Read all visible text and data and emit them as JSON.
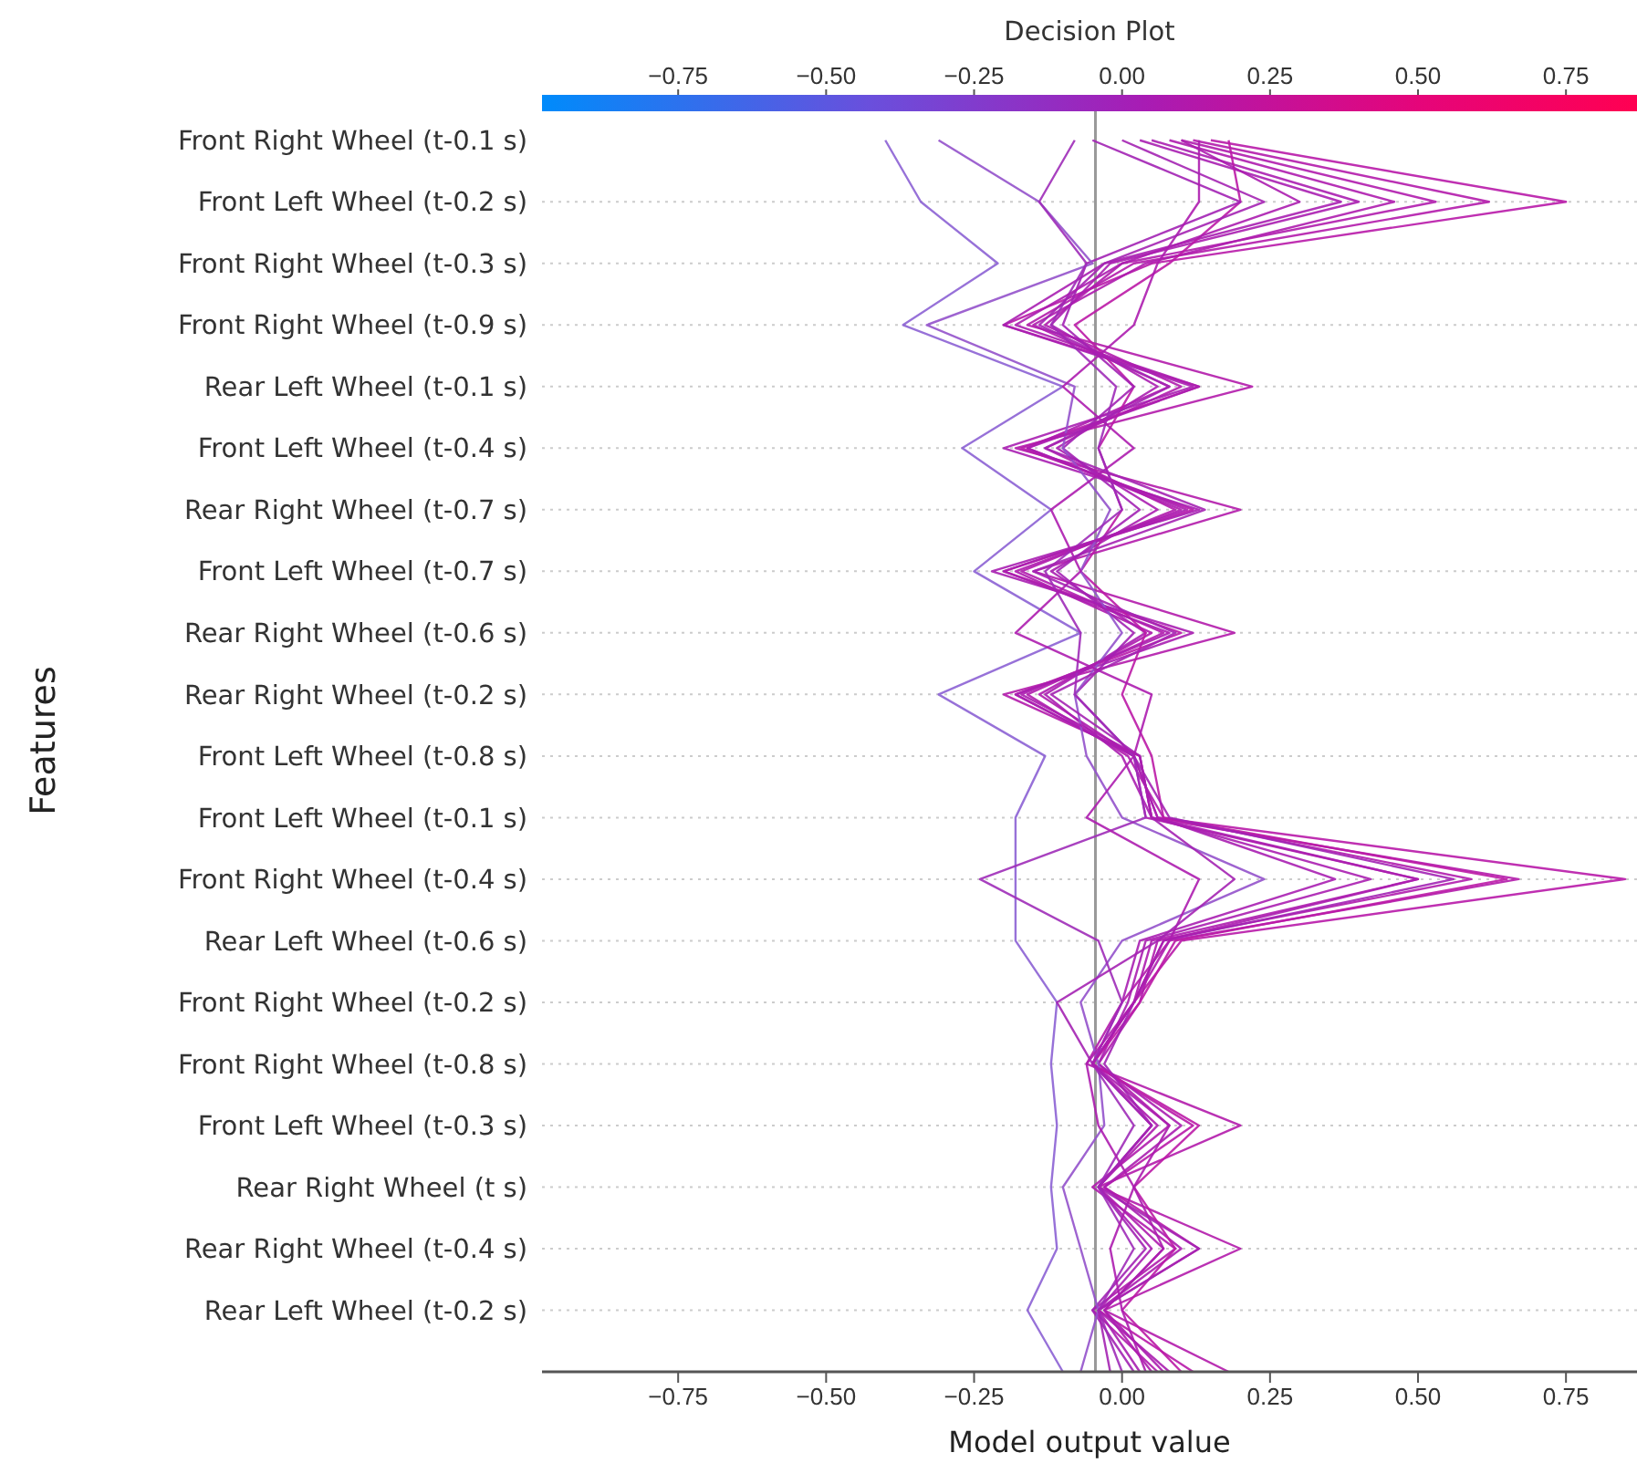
{
  "chart_data": {
    "type": "line",
    "orientation": "horizontal",
    "title": "Decision Plot",
    "xlabel": "Model output value",
    "ylabel": "Features",
    "categories": [
      "Front Right Wheel (t-0.1 s)",
      "Front Left Wheel (t-0.2 s)",
      "Front Right Wheel (t-0.3 s)",
      "Front Right Wheel (t-0.9 s)",
      "Rear Left Wheel (t-0.1 s)",
      "Front Left Wheel (t-0.4 s)",
      "Rear Right Wheel (t-0.7 s)",
      "Front Left Wheel (t-0.7 s)",
      "Rear Right Wheel (t-0.6 s)",
      "Rear Right Wheel (t-0.2 s)",
      "Front Left Wheel (t-0.8 s)",
      "Front Left Wheel (t-0.1 s)",
      "Front Right Wheel (t-0.4 s)",
      "Rear Left Wheel (t-0.6 s)",
      "Front Right Wheel (t-0.2 s)",
      "Front Right Wheel (t-0.8 s)",
      "Front Left Wheel (t-0.3 s)",
      "Rear Right Wheel (t s)",
      "Rear Right Wheel (t-0.4 s)",
      "Rear Left Wheel (t-0.2 s)",
      null
    ],
    "xlim": [
      -0.98,
      0.87
    ],
    "xticks": [
      {
        "value": -0.75,
        "label": "−0.75"
      },
      {
        "value": -0.5,
        "label": "−0.50"
      },
      {
        "value": -0.25,
        "label": "−0.25"
      },
      {
        "value": 0,
        "label": "0.00"
      },
      {
        "value": 0.25,
        "label": "0.25"
      },
      {
        "value": 0.5,
        "label": "0.50"
      },
      {
        "value": 0.75,
        "label": "0.75"
      }
    ],
    "clim": [
      -0.98,
      0.87
    ],
    "cticks": [
      {
        "value": -0.75,
        "label": "−0.75"
      },
      {
        "value": -0.5,
        "label": "−0.50"
      },
      {
        "value": -0.25,
        "label": "−0.25"
      },
      {
        "value": 0,
        "label": "0.00"
      },
      {
        "value": 0.25,
        "label": "0.25"
      },
      {
        "value": 0.5,
        "label": "0.50"
      },
      {
        "value": 0.75,
        "label": "0.75"
      }
    ],
    "grid": "y",
    "ref_lines": [
      {
        "axis": "x",
        "value": -0.045,
        "color": "#999999"
      }
    ],
    "series": [
      {
        "color": "#b81aa8",
        "values": [
          0.15,
          0.75,
          0.05,
          -0.2,
          0.13,
          -0.17,
          0.12,
          -0.2,
          0.1,
          -0.18,
          0.02,
          0.06,
          0.85,
          0.1,
          0.02,
          -0.05,
          0.12,
          -0.03,
          0.13,
          -0.04,
          0.12
        ]
      },
      {
        "color": "#b31bab",
        "values": [
          0.12,
          0.62,
          0.02,
          -0.16,
          0.22,
          -0.18,
          0.2,
          -0.15,
          0.19,
          -0.2,
          0.03,
          0.05,
          0.67,
          0.08,
          0.0,
          -0.06,
          0.2,
          -0.04,
          0.2,
          -0.03,
          0.18
        ]
      },
      {
        "color": "#b01cad",
        "values": [
          0.1,
          0.53,
          0.0,
          -0.13,
          0.1,
          -0.13,
          0.09,
          -0.17,
          0.07,
          -0.16,
          0.01,
          0.07,
          0.59,
          0.06,
          0.03,
          -0.04,
          0.08,
          -0.05,
          0.09,
          -0.05,
          0.06
        ]
      },
      {
        "color": "#ae1cae",
        "values": [
          0.08,
          0.46,
          0.04,
          -0.15,
          0.08,
          -0.16,
          0.1,
          -0.18,
          0.05,
          -0.14,
          0.02,
          0.04,
          0.5,
          0.05,
          0.02,
          -0.05,
          0.06,
          -0.04,
          0.07,
          -0.03,
          0.05
        ]
      },
      {
        "color": "#aa1eb0",
        "values": [
          0.05,
          0.4,
          -0.02,
          -0.12,
          0.06,
          -0.11,
          0.06,
          -0.12,
          0.04,
          -0.13,
          0.0,
          0.05,
          0.42,
          0.04,
          0.01,
          -0.04,
          0.1,
          -0.03,
          0.1,
          -0.04,
          0.08
        ]
      },
      {
        "color": "#a81fb1",
        "values": [
          0.03,
          0.37,
          -0.03,
          -0.2,
          0.12,
          -0.2,
          0.13,
          -0.22,
          0.12,
          -0.18,
          0.02,
          0.06,
          0.36,
          0.03,
          0.0,
          -0.05,
          0.05,
          -0.04,
          0.05,
          -0.04,
          0.03
        ]
      },
      {
        "color": "#bb19a6",
        "values": [
          0.18,
          0.2,
          0.08,
          -0.08,
          0.02,
          -0.04,
          0.0,
          -0.07,
          0.04,
          0.0,
          0.05,
          0.07,
          0.65,
          0.09,
          0.03,
          -0.05,
          0.13,
          0.02,
          0.09,
          0.0,
          0.1
        ]
      },
      {
        "color": "#a222b4",
        "values": [
          -0.05,
          0.2,
          -0.06,
          -0.1,
          0.02,
          -0.1,
          0.03,
          -0.11,
          0.02,
          -0.08,
          0.02,
          0.08,
          0.56,
          0.07,
          0.02,
          -0.03,
          0.05,
          -0.04,
          0.04,
          -0.05,
          0.02
        ]
      },
      {
        "color": "#8c62d4",
        "values": [
          -0.4,
          -0.34,
          -0.21,
          -0.37,
          -0.1,
          -0.27,
          -0.12,
          -0.25,
          -0.07,
          -0.31,
          -0.13,
          -0.18,
          -0.18,
          -0.18,
          -0.11,
          -0.12,
          -0.11,
          -0.12,
          -0.11,
          -0.16,
          -0.1
        ]
      },
      {
        "color": "#9452cb",
        "values": [
          -0.31,
          -0.14,
          -0.05,
          -0.33,
          -0.08,
          -0.1,
          -0.02,
          -0.07,
          0.0,
          -0.08,
          -0.06,
          0.0,
          0.24,
          0.0,
          -0.07,
          -0.04,
          -0.03,
          -0.1,
          -0.07,
          -0.04,
          -0.07
        ]
      },
      {
        "color": "#9f2cb8",
        "values": [
          -0.08,
          -0.14,
          -0.06,
          -0.12,
          -0.01,
          -0.04,
          0.0,
          -0.13,
          -0.07,
          -0.08,
          0.02,
          0.04,
          -0.24,
          -0.04,
          0.0,
          -0.05,
          0.02,
          -0.04,
          0.02,
          -0.04,
          0.0
        ]
      },
      {
        "color": "#ad1daf",
        "values": [
          0.13,
          0.13,
          0.06,
          0.02,
          -0.1,
          0.02,
          -0.12,
          -0.07,
          -0.18,
          0.05,
          0.02,
          -0.06,
          0.13,
          0.08,
          0.02,
          -0.06,
          -0.04,
          0.02,
          -0.02,
          0.0,
          0.04
        ]
      },
      {
        "color": "#a424b3",
        "values": [
          0.0,
          0.24,
          -0.03,
          -0.14,
          0.08,
          -0.13,
          0.14,
          -0.15,
          0.09,
          -0.12,
          0.03,
          0.05,
          0.19,
          0.06,
          -0.11,
          -0.05,
          0.05,
          -0.04,
          0.13,
          -0.04,
          -0.02
        ]
      },
      {
        "color": "#ab1daf",
        "values": [
          0.1,
          0.3,
          0.0,
          -0.18,
          0.13,
          -0.16,
          0.11,
          -0.2,
          0.08,
          -0.17,
          0.03,
          0.05,
          0.5,
          0.07,
          0.02,
          -0.05,
          0.08,
          0.02,
          0.07,
          -0.03,
          0.07
        ]
      }
    ]
  }
}
